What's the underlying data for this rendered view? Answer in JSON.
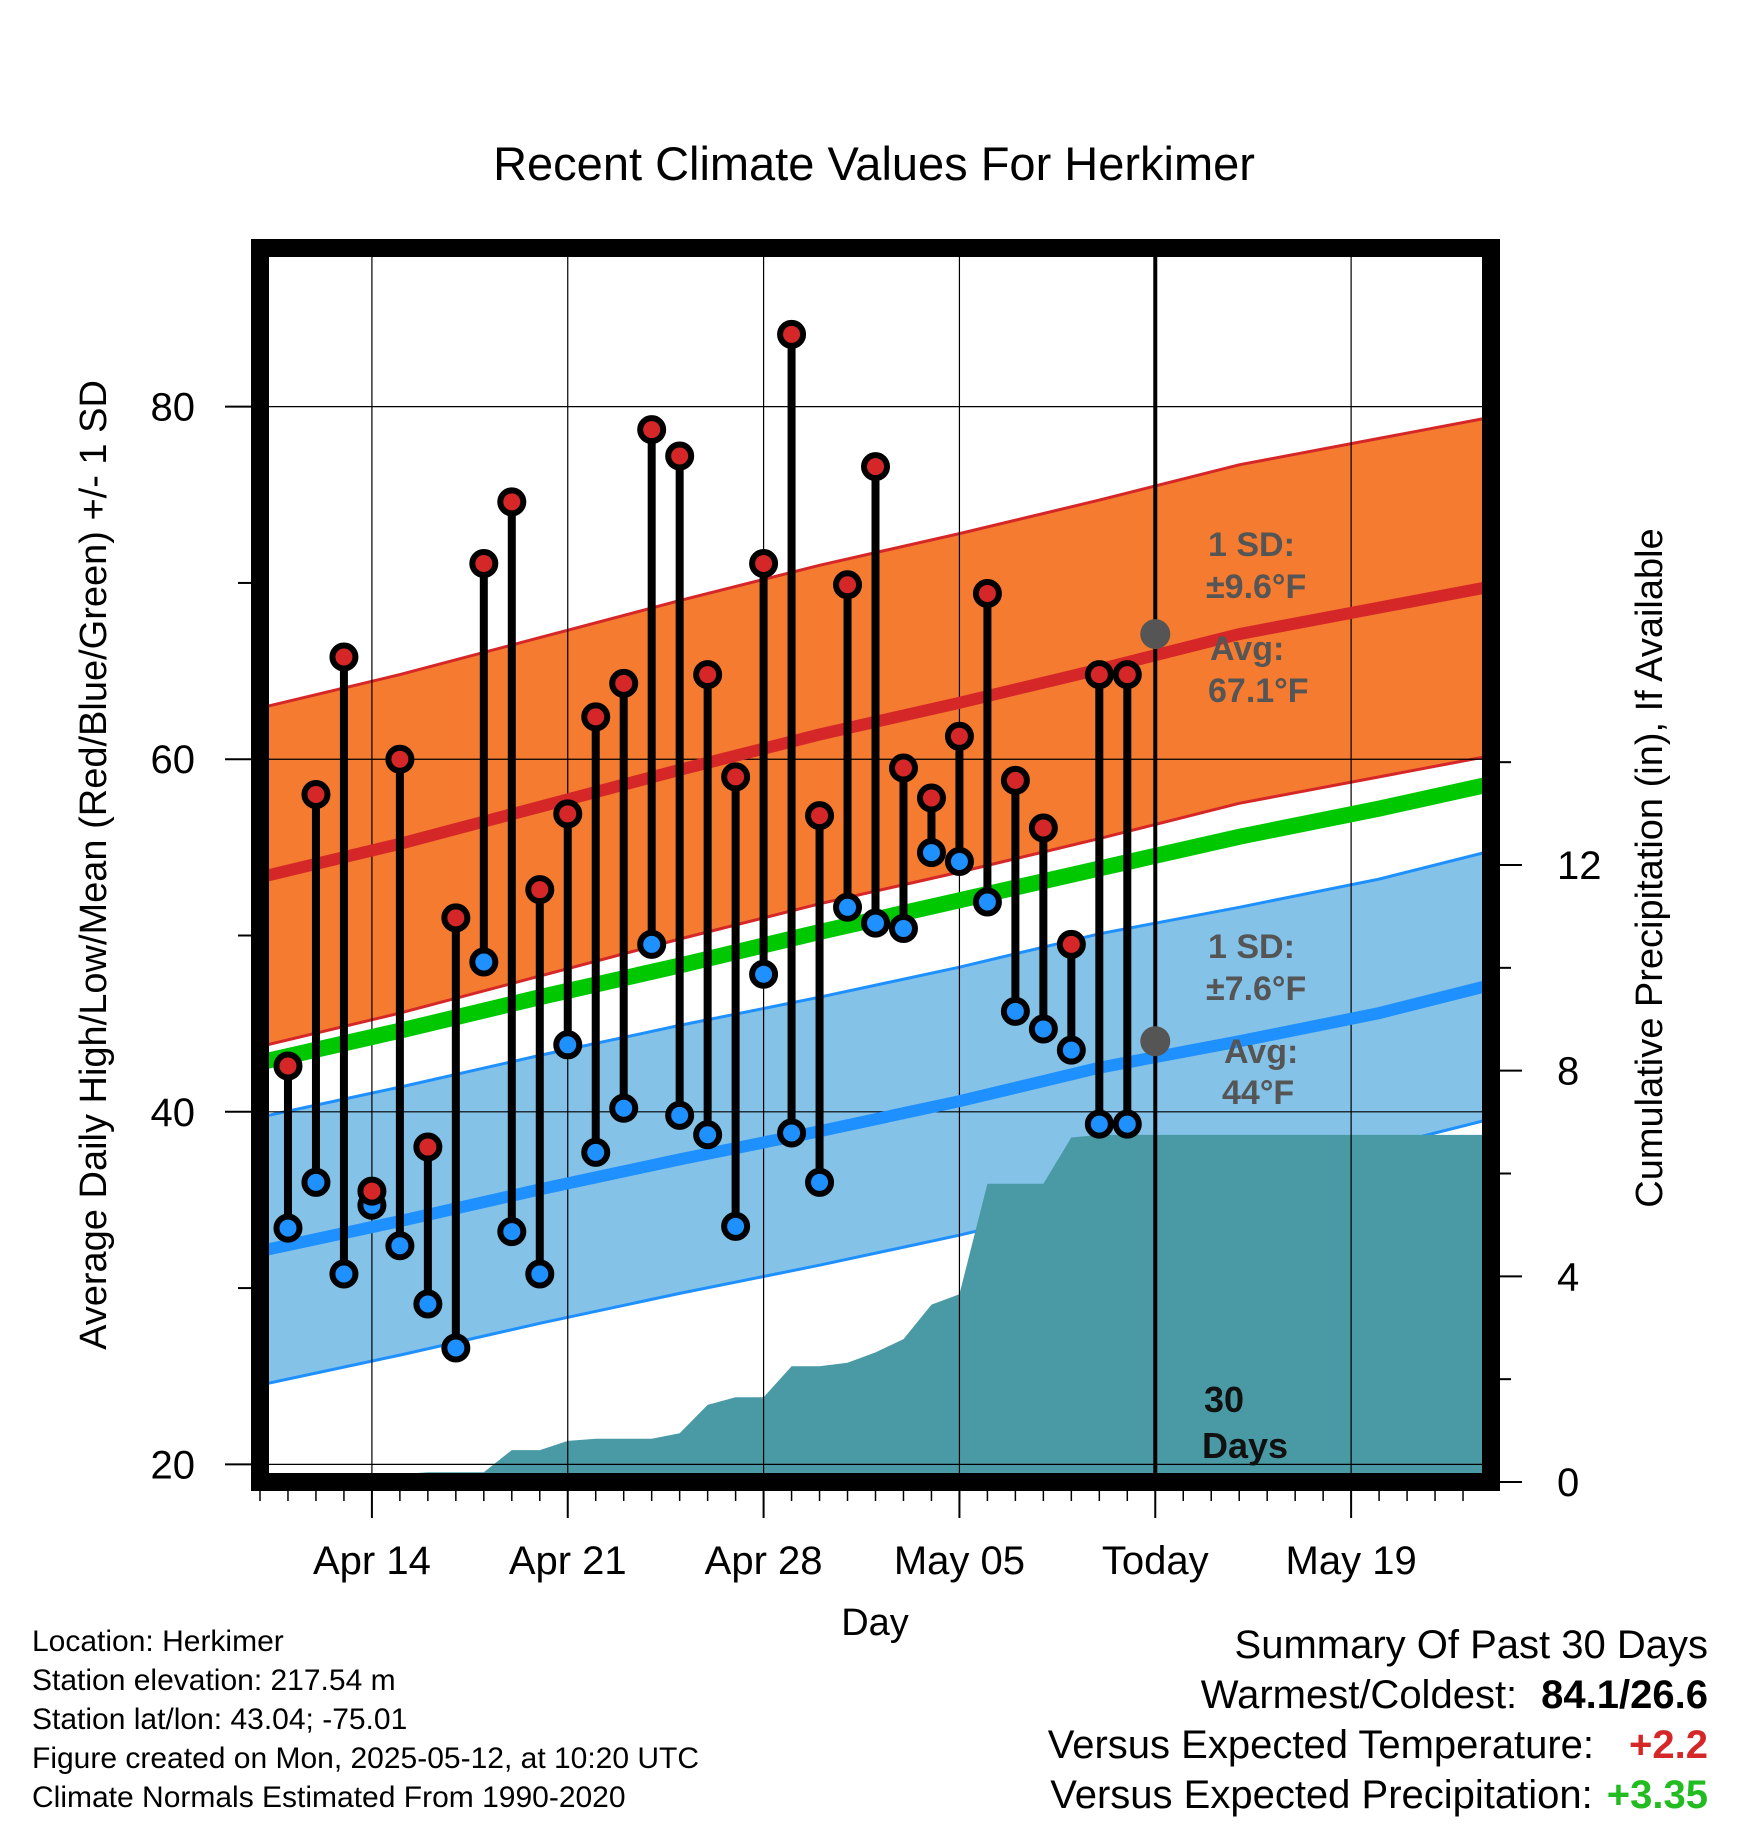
{
  "chart_data": {
    "type": "line",
    "title": "Recent Climate Values For Herkimer",
    "xlabel": "Day",
    "ylabel": "Average Daily High/Low/Mean (Red/Blue/Green) +/- 1 SD",
    "y2label": "Cumulative Precipitation (in), If Available",
    "ylim": [
      19,
      89
    ],
    "y2lim": [
      0,
      24
    ],
    "xlim": [
      "2025-04-10",
      "2025-05-24"
    ],
    "yticks": [
      "20",
      "40",
      "60",
      "80"
    ],
    "y2ticks": [
      "0",
      "4",
      "8",
      "12"
    ],
    "xtick_labels": [
      "Apr 14",
      "Apr 21",
      "Apr 28",
      "May 05",
      "Today",
      "May 19"
    ],
    "grid": true,
    "colors": {
      "high": "#d62728",
      "high_band": "#f47b30",
      "low": "#1e90ff",
      "low_band": "#84c2e8",
      "mean": "#00c800",
      "precip": "#4a9aa5",
      "annotation": "#555555"
    },
    "dates": [
      "2025-04-11",
      "2025-04-12",
      "2025-04-13",
      "2025-04-14",
      "2025-04-15",
      "2025-04-16",
      "2025-04-17",
      "2025-04-18",
      "2025-04-19",
      "2025-04-20",
      "2025-04-21",
      "2025-04-22",
      "2025-04-23",
      "2025-04-24",
      "2025-04-25",
      "2025-04-26",
      "2025-04-27",
      "2025-04-28",
      "2025-04-29",
      "2025-04-30",
      "2025-05-01",
      "2025-05-02",
      "2025-05-03",
      "2025-05-04",
      "2025-05-05",
      "2025-05-06",
      "2025-05-07",
      "2025-05-08",
      "2025-05-09",
      "2025-05-10",
      "2025-05-11"
    ],
    "series": [
      {
        "name": "High",
        "values": [
          42.6,
          58.0,
          65.8,
          35.5,
          60.0,
          38.0,
          51.0,
          71.1,
          74.6,
          52.6,
          56.9,
          62.4,
          64.3,
          78.7,
          77.2,
          64.8,
          59.0,
          71.1,
          84.1,
          56.8,
          69.9,
          76.6,
          59.5,
          57.8,
          61.3,
          69.4,
          58.8,
          56.1,
          49.5,
          64.8,
          64.8
        ]
      },
      {
        "name": "Low",
        "values": [
          33.4,
          36.0,
          30.8,
          34.7,
          32.4,
          29.1,
          26.6,
          48.5,
          33.2,
          30.8,
          43.8,
          37.7,
          40.2,
          49.5,
          39.8,
          38.7,
          33.5,
          47.8,
          38.8,
          36.0,
          51.6,
          50.7,
          50.4,
          54.7,
          54.2,
          51.9,
          45.7,
          44.7,
          43.5,
          39.3,
          39.3
        ]
      }
    ],
    "normals": {
      "x": [
        "2025-04-10",
        "2025-04-15",
        "2025-04-20",
        "2025-04-25",
        "2025-04-30",
        "2025-05-05",
        "2025-05-10",
        "2025-05-15",
        "2025-05-20",
        "2025-05-24"
      ],
      "high_avg": [
        53.3,
        55.2,
        57.3,
        59.4,
        61.4,
        63.2,
        65.1,
        67.1,
        68.6,
        69.8
      ],
      "low_avg": [
        32.1,
        33.8,
        35.6,
        37.3,
        38.9,
        40.6,
        42.5,
        44.0,
        45.6,
        47.2
      ],
      "mean_avg": [
        42.8,
        44.6,
        46.5,
        48.3,
        50.2,
        52.0,
        53.8,
        55.6,
        57.2,
        58.6
      ],
      "high_sd": 9.6,
      "low_sd": 7.6
    },
    "precip": {
      "x": [
        "2025-04-10",
        "2025-04-11",
        "2025-04-14",
        "2025-04-15",
        "2025-04-16",
        "2025-04-17",
        "2025-04-18",
        "2025-04-19",
        "2025-04-20",
        "2025-04-21",
        "2025-04-22",
        "2025-04-23",
        "2025-04-24",
        "2025-04-25",
        "2025-04-26",
        "2025-04-27",
        "2025-04-28",
        "2025-04-29",
        "2025-04-30",
        "2025-05-01",
        "2025-05-02",
        "2025-05-03",
        "2025-05-04",
        "2025-05-05",
        "2025-05-06",
        "2025-05-07",
        "2025-05-08",
        "2025-05-09",
        "2025-05-10",
        "2025-05-12",
        "2025-05-24"
      ],
      "values": [
        0.0,
        0.12,
        0.12,
        0.15,
        0.19,
        0.19,
        0.19,
        0.62,
        0.62,
        0.8,
        0.84,
        0.84,
        0.84,
        0.95,
        1.5,
        1.65,
        1.65,
        2.25,
        2.25,
        2.32,
        2.52,
        2.78,
        3.45,
        3.65,
        5.8,
        5.8,
        5.8,
        6.7,
        6.75,
        6.75,
        6.75
      ]
    },
    "annotations": {
      "high_sd": "1 SD:",
      "high_sd_val": "±9.6°F",
      "high_avg": "Avg:",
      "high_avg_val": "67.1°F",
      "low_sd": "1 SD:",
      "low_sd_val": "±7.6°F",
      "low_avg": "Avg:",
      "low_avg_val": "44°F",
      "days_num": "30",
      "days_word": "Days"
    }
  },
  "info": {
    "location": "Location: Herkimer",
    "elevation": "Station elevation: 217.54 m",
    "latlon": "Station lat/lon: 43.04; -75.01",
    "created": "Figure created on Mon, 2025-05-12, at 10:20 UTC",
    "normals": "Climate Normals Estimated From 1990-2020"
  },
  "summary": {
    "title": "Summary Of Past 30 Days",
    "warmest_label": "Warmest/Coldest:",
    "warmest_value": "84.1/26.6",
    "temp_label": "Versus Expected Temperature:",
    "temp_value": "+2.2",
    "precip_label": "Versus Expected Precipitation:",
    "precip_value": "+3.35"
  }
}
